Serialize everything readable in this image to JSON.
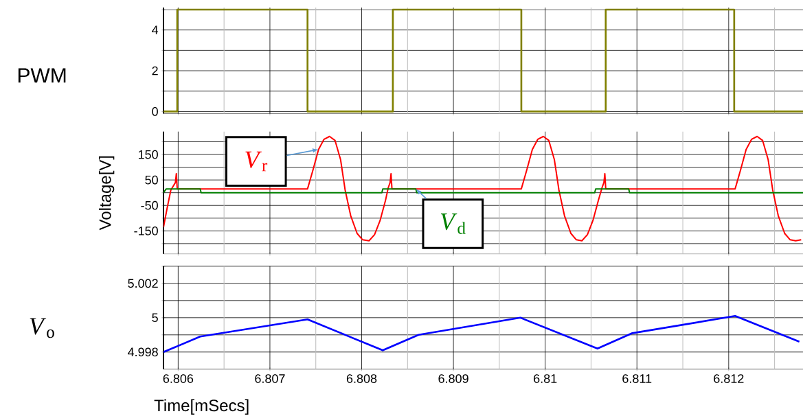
{
  "chart_data": [
    {
      "type": "step",
      "ylabel": "PWM",
      "color": "#808000",
      "tick_labels": "y",
      "grid": true,
      "x": [
        6.80584,
        6.80599,
        6.80741,
        6.80834,
        6.80974,
        6.81066,
        6.81206,
        6.81281
      ],
      "values": [
        0,
        5,
        0,
        5,
        0,
        5,
        0,
        0
      ],
      "xlim": [
        6.80584,
        6.81281
      ],
      "ylim": [
        -0.1,
        5.1
      ],
      "xticks": [
        6.806,
        6.807,
        6.808,
        6.809,
        6.81,
        6.811,
        6.812,
        {
          "value": 6.8065,
          "label": null
        },
        {
          "value": 6.8075,
          "label": null
        },
        {
          "value": 6.8085,
          "label": null
        },
        {
          "value": 6.8095,
          "label": null
        },
        {
          "value": 6.8105,
          "label": null
        },
        {
          "value": 6.8115,
          "label": null
        },
        {
          "value": 6.8125,
          "label": null
        }
      ],
      "yticks": [
        0,
        2,
        4,
        {
          "value": 1,
          "label": null
        },
        {
          "value": 3,
          "label": null
        },
        {
          "value": 5,
          "label": null
        }
      ]
    },
    {
      "type": "line",
      "ylabel": "Voltage[V]",
      "tick_labels": "y",
      "grid": true,
      "series": [
        {
          "color": "#ff0000",
          "x": [
            6.80584,
            6.80588,
            6.80592,
            6.80597,
            6.80598,
            6.80599,
            6.80741,
            6.80747,
            6.80753,
            6.80759,
            6.80765,
            6.80771,
            6.80777,
            6.80782,
            6.80788,
            6.80795,
            6.80801,
            6.80808,
            6.80814,
            6.8082,
            6.80826,
            6.80829,
            6.80831,
            6.80832,
            6.80833,
            6.80974,
            6.8098,
            6.80986,
            6.80992,
            6.80998,
            6.81004,
            6.8101,
            6.81015,
            6.81021,
            6.81028,
            6.81034,
            6.8104,
            6.81046,
            6.81052,
            6.81058,
            6.81062,
            6.81064,
            6.81065,
            6.81066,
            6.81207,
            6.81213,
            6.81219,
            6.81225,
            6.81231,
            6.81237,
            6.81243,
            6.81248,
            6.81254,
            6.81261,
            6.81267,
            6.81273,
            6.81279
          ],
          "values": [
            -136,
            -60,
            10,
            40,
            75,
            15,
            15,
            90,
            170,
            210,
            221,
            205,
            130,
            10,
            -90,
            -160,
            -185,
            -189,
            -165,
            -110,
            -30,
            20,
            40,
            75,
            15,
            15,
            90,
            170,
            210,
            221,
            205,
            130,
            10,
            -90,
            -160,
            -185,
            -189,
            -165,
            -110,
            -30,
            20,
            40,
            75,
            15,
            15,
            90,
            170,
            210,
            221,
            205,
            130,
            10,
            -90,
            -160,
            -185,
            -189,
            -185
          ]
        },
        {
          "color": "#008000",
          "x": [
            6.80584,
            6.80587,
            6.80624,
            6.80625,
            6.80822,
            6.80823,
            6.80859,
            6.8086,
            6.81054,
            6.81055,
            6.81091,
            6.81092,
            6.81281
          ],
          "values": [
            0,
            15,
            15,
            0,
            0,
            15,
            15,
            0,
            0,
            15,
            15,
            0,
            0
          ]
        }
      ],
      "annotations": [
        {
          "text": "*V*$_{r}$",
          "x": 6.80753,
          "y": 170
        },
        {
          "text": "*V*$_{d}$",
          "x": 6.80859,
          "y": 15
        }
      ],
      "xlim": [
        6.80584,
        6.81281
      ],
      "ylim": [
        -240,
        240
      ],
      "xticks": [
        6.806,
        6.807,
        6.808,
        6.809,
        6.81,
        6.811,
        6.812,
        {
          "value": 6.8065,
          "label": null
        },
        {
          "value": 6.8075,
          "label": null
        },
        {
          "value": 6.8085,
          "label": null
        },
        {
          "value": 6.8095,
          "label": null
        },
        {
          "value": 6.8105,
          "label": null
        },
        {
          "value": 6.8115,
          "label": null
        },
        {
          "value": 6.8125,
          "label": null
        }
      ],
      "yticks": [
        150,
        50,
        -50,
        -150,
        {
          "value": 200,
          "label": null
        },
        {
          "value": 100,
          "label": null
        },
        {
          "value": 0,
          "label": null
        },
        {
          "value": -100,
          "label": null
        },
        {
          "value": -200,
          "label": null
        }
      ]
    },
    {
      "type": "line",
      "ylabel": "*V*$_{o}$",
      "xlabel": "Time[mSecs]",
      "color": "#0000ff",
      "grid": true,
      "x": [
        6.80584,
        6.80624,
        6.80741,
        6.80823,
        6.80862,
        6.80973,
        6.81057,
        6.81095,
        6.81207,
        6.81277
      ],
      "values": [
        4.998,
        4.9989,
        4.9999,
        4.9981,
        4.999,
        5.0,
        4.9982,
        4.9991,
        5.0001,
        4.9986
      ],
      "xlim": [
        6.80584,
        6.81281
      ],
      "ylim": [
        4.997,
        5.003
      ],
      "xticks": [
        6.806,
        6.807,
        6.808,
        6.809,
        6.81,
        6.811,
        6.812,
        {
          "value": 6.8065,
          "label": null
        },
        {
          "value": 6.8075,
          "label": null
        },
        {
          "value": 6.8085,
          "label": null
        },
        {
          "value": 6.8095,
          "label": null
        },
        {
          "value": 6.8105,
          "label": null
        },
        {
          "value": 6.8115,
          "label": null
        },
        {
          "value": 6.8125,
          "label": null
        }
      ],
      "yticks": [
        4.998,
        5,
        5.002,
        {
          "value": 4.999,
          "label": null
        },
        {
          "value": 5.001,
          "label": null
        },
        {
          "value": 5.003,
          "label": null
        }
      ]
    }
  ]
}
